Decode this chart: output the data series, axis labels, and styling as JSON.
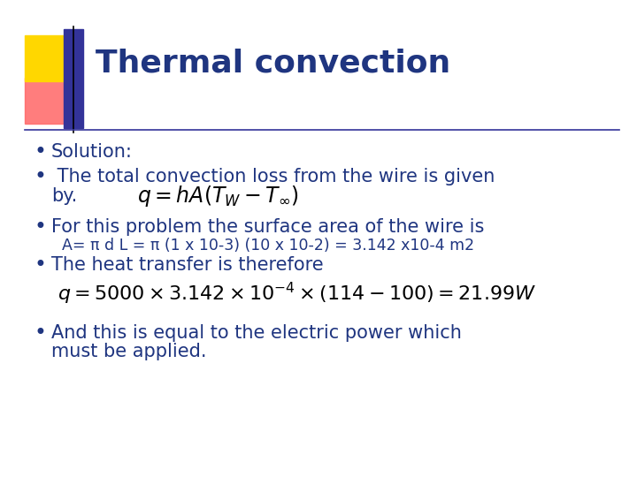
{
  "title": "Thermal convection",
  "title_color": "#1F3580",
  "title_fontsize": 26,
  "background_color": "#FFFFFF",
  "text_color": "#1F3580",
  "formula1": "$q = hA(T_W - T_{\\infty})$",
  "formula1_fontsize": 17,
  "formula2": "$q = 5000\\times3.142\\times10^{-4}\\times(114-100)=21.99W$",
  "formula2_fontsize": 16,
  "header_line_color": "#333399",
  "decoration_gold": "#FFD700",
  "decoration_red_top": "#FF6666",
  "decoration_red_bottom": "#CC0000",
  "decoration_blue": "#333399",
  "fs_main": 15,
  "fs_sub": 12.5
}
